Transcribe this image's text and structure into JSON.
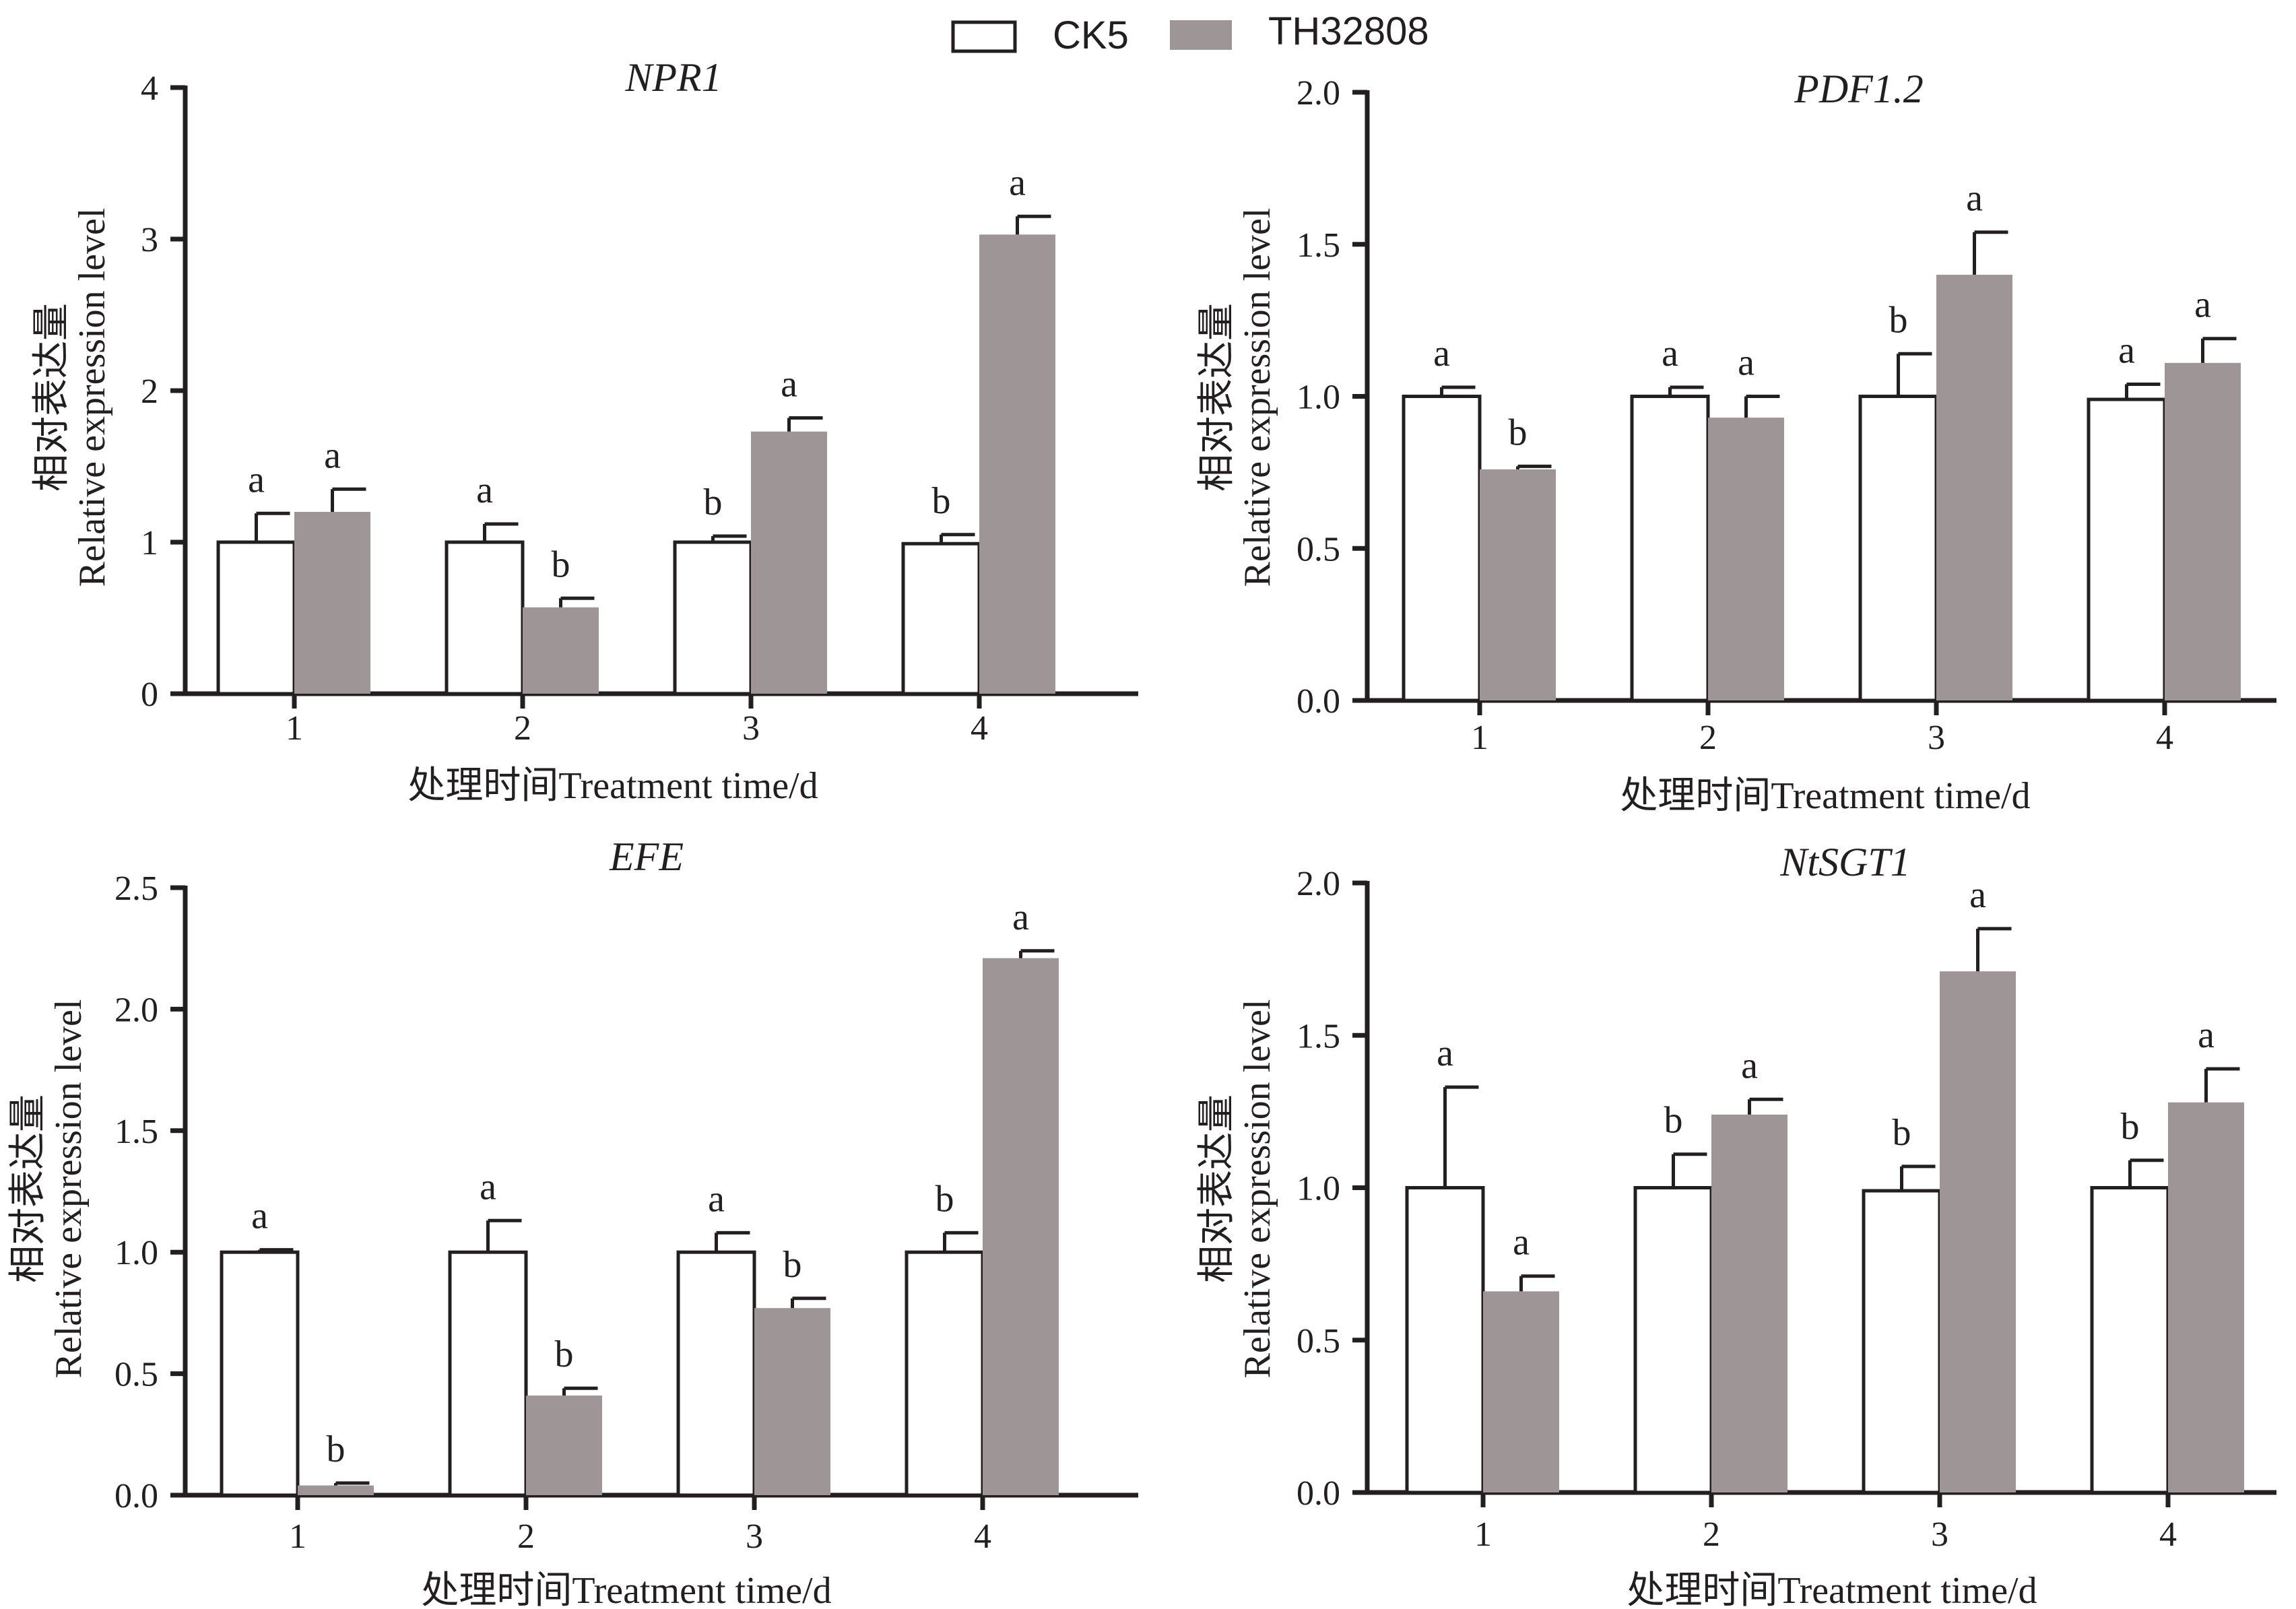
{
  "legend": {
    "series": [
      {
        "name": "CK5",
        "color": "#ffffff"
      },
      {
        "name": "TH32808",
        "color": "#9e9596"
      }
    ]
  },
  "colors": {
    "ck5": "#ffffff",
    "th32808": "#9e9596",
    "axis": "#231f20"
  },
  "chart_data": [
    {
      "type": "bar",
      "title": "NPR1",
      "xlabel": "处理时间Treatment time/d",
      "ylabel_cn": "相对表达量",
      "ylabel": "Relative expression level",
      "categories": [
        "1",
        "2",
        "3",
        "4"
      ],
      "ylim": [
        0,
        4
      ],
      "yticks": [
        "0",
        "1",
        "2",
        "3",
        "4"
      ],
      "series": [
        {
          "name": "CK5",
          "values": [
            1.0,
            1.0,
            1.0,
            0.99
          ],
          "errors": [
            0.19,
            0.12,
            0.04,
            0.06
          ],
          "labels": [
            "a",
            "a",
            "b",
            "b"
          ]
        },
        {
          "name": "TH32808",
          "values": [
            1.2,
            0.57,
            1.73,
            3.03
          ],
          "errors": [
            0.15,
            0.06,
            0.09,
            0.12
          ],
          "labels": [
            "a",
            "b",
            "a",
            "a"
          ]
        }
      ]
    },
    {
      "type": "bar",
      "title": "PDF1.2",
      "xlabel": "处理时间Treatment time/d",
      "ylabel_cn": "相对表达量",
      "ylabel": "Relative expression level",
      "categories": [
        "1",
        "2",
        "3",
        "4"
      ],
      "ylim": [
        0,
        2.0
      ],
      "yticks": [
        "0.0",
        "0.5",
        "1.0",
        "1.5",
        "2.0"
      ],
      "series": [
        {
          "name": "CK5",
          "values": [
            1.0,
            1.0,
            1.0,
            0.99
          ],
          "errors": [
            0.03,
            0.03,
            0.14,
            0.05
          ],
          "labels": [
            "a",
            "a",
            "b",
            "a"
          ]
        },
        {
          "name": "TH32808",
          "values": [
            0.76,
            0.93,
            1.4,
            1.11
          ],
          "errors": [
            0.01,
            0.07,
            0.14,
            0.08
          ],
          "labels": [
            "b",
            "a",
            "a",
            "a"
          ]
        }
      ]
    },
    {
      "type": "bar",
      "title": "EFE",
      "xlabel": "处理时间Treatment time/d",
      "ylabel_cn": "相对表达量",
      "ylabel": "Relative expression level",
      "categories": [
        "1",
        "2",
        "3",
        "4"
      ],
      "ylim": [
        0,
        2.5
      ],
      "yticks": [
        "0.0",
        "0.5",
        "1.0",
        "1.5",
        "2.0",
        "2.5"
      ],
      "series": [
        {
          "name": "CK5",
          "values": [
            1.0,
            1.0,
            1.0,
            1.0
          ],
          "errors": [
            0.01,
            0.13,
            0.08,
            0.08
          ],
          "labels": [
            "a",
            "a",
            "a",
            "b"
          ]
        },
        {
          "name": "TH32808",
          "values": [
            0.04,
            0.41,
            0.77,
            2.21
          ],
          "errors": [
            0.01,
            0.03,
            0.04,
            0.03
          ],
          "labels": [
            "b",
            "b",
            "b",
            "a"
          ]
        }
      ]
    },
    {
      "type": "bar",
      "title": "NtSGT1",
      "xlabel": "处理时间Treatment time/d",
      "ylabel_cn": "相对表达量",
      "ylabel": "Relative expression level",
      "categories": [
        "1",
        "2",
        "3",
        "4"
      ],
      "ylim": [
        0,
        2.0
      ],
      "yticks": [
        "0.0",
        "0.5",
        "1.0",
        "1.5",
        "2.0"
      ],
      "series": [
        {
          "name": "CK5",
          "values": [
            1.0,
            1.0,
            0.99,
            1.0
          ],
          "errors": [
            0.33,
            0.11,
            0.08,
            0.09
          ],
          "labels": [
            "a",
            "b",
            "b",
            "b"
          ]
        },
        {
          "name": "TH32808",
          "values": [
            0.66,
            1.24,
            1.71,
            1.28
          ],
          "errors": [
            0.05,
            0.05,
            0.14,
            0.11
          ],
          "labels": [
            "a",
            "a",
            "a",
            "a"
          ]
        }
      ]
    }
  ]
}
